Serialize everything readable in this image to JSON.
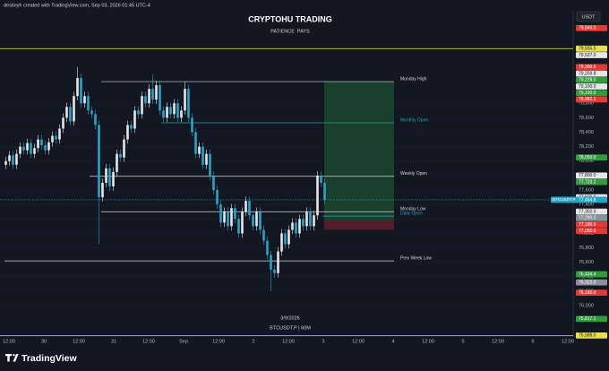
{
  "chart_data": {
    "type": "candlestick",
    "header": "destinyh created with TradingView.com, Sep 03, 2026 01:45 UTC-4",
    "title": "CRYPTOHU TRADING",
    "subtitle": "PATIENCE  PAYS",
    "watermark_date": "3/9/2026",
    "watermark_symbol": "BTCUSDT.P | 60M",
    "currency": "USDT",
    "brand": "TradingView",
    "up_color": "#e6e6e6",
    "down_color": "#2aa3c9",
    "ylim": [
      75580,
      80080
    ],
    "yticks": [
      {
        "value": 76000,
        "label": "76,000"
      },
      {
        "value": 76200,
        "label": "76,200"
      },
      {
        "value": 76400,
        "label": "76,400"
      },
      {
        "value": 76600,
        "label": "76,600"
      },
      {
        "value": 76800,
        "label": "76,800"
      },
      {
        "value": 77000,
        "label": "77,000"
      },
      {
        "value": 77200,
        "label": "77,200"
      },
      {
        "value": 77400,
        "label": "77,400"
      },
      {
        "value": 77600,
        "label": "77,600"
      },
      {
        "value": 77800,
        "label": "77,800"
      },
      {
        "value": 78000,
        "label": "78,000"
      },
      {
        "value": 78200,
        "label": "78,200"
      },
      {
        "value": 78400,
        "label": "78,400"
      },
      {
        "value": 78600,
        "label": "78,600"
      },
      {
        "value": 78800,
        "label": "78,800"
      }
    ],
    "xtick_labels": [
      "12:00",
      "30",
      "12:00",
      "31",
      "12:00",
      "Sep",
      "12:00",
      "2",
      "12:00",
      "3",
      "12:00",
      "4",
      "12:00",
      "5",
      "12:00",
      "6",
      "12:00"
    ],
    "ohlc": [
      [
        77950,
        78060,
        77890,
        78000
      ],
      [
        78000,
        78140,
        77940,
        78080
      ],
      [
        78080,
        78140,
        77890,
        77950
      ],
      [
        77950,
        78160,
        77890,
        78100
      ],
      [
        78100,
        78260,
        78040,
        78200
      ],
      [
        78200,
        78260,
        78090,
        78150
      ],
      [
        78150,
        78310,
        78090,
        78250
      ],
      [
        78250,
        78310,
        78040,
        78100
      ],
      [
        78100,
        78240,
        78040,
        78180
      ],
      [
        78180,
        78360,
        78120,
        78300
      ],
      [
        78300,
        78360,
        78160,
        78220
      ],
      [
        78220,
        78280,
        78090,
        78150
      ],
      [
        78150,
        78320,
        78090,
        78260
      ],
      [
        78260,
        78410,
        78200,
        78350
      ],
      [
        78350,
        78410,
        78240,
        78300
      ],
      [
        78300,
        78510,
        78240,
        78450
      ],
      [
        78450,
        78660,
        78390,
        78600
      ],
      [
        78600,
        78810,
        78540,
        78750
      ],
      [
        78750,
        78810,
        78490,
        78550
      ],
      [
        78550,
        78960,
        78490,
        78900
      ],
      [
        78900,
        79300,
        78840,
        79150
      ],
      [
        79150,
        79210,
        78740,
        78800
      ],
      [
        78800,
        78960,
        78740,
        78900
      ],
      [
        78900,
        78960,
        78640,
        78700
      ],
      [
        78700,
        78760,
        78590,
        78650
      ],
      [
        78650,
        78710,
        78440,
        78500
      ],
      [
        78500,
        78560,
        76850,
        77500
      ],
      [
        77500,
        77760,
        77440,
        77700
      ],
      [
        77700,
        77960,
        77640,
        77900
      ],
      [
        77900,
        77960,
        77590,
        77650
      ],
      [
        77650,
        77910,
        77590,
        77850
      ],
      [
        77850,
        78160,
        77790,
        78100
      ],
      [
        78100,
        78160,
        77990,
        78050
      ],
      [
        78050,
        78360,
        77990,
        78300
      ],
      [
        78300,
        78560,
        78240,
        78500
      ],
      [
        78500,
        78560,
        78390,
        78450
      ],
      [
        78450,
        78760,
        78390,
        78700
      ],
      [
        78700,
        78760,
        78590,
        78650
      ],
      [
        78650,
        78960,
        78590,
        78900
      ],
      [
        78900,
        78960,
        78740,
        78800
      ],
      [
        78800,
        79060,
        78740,
        79000
      ],
      [
        79000,
        79200,
        78790,
        78850
      ],
      [
        78850,
        79110,
        78790,
        79050
      ],
      [
        79050,
        79110,
        78640,
        78700
      ],
      [
        78700,
        78760,
        78540,
        78600
      ],
      [
        78600,
        78810,
        78540,
        78750
      ],
      [
        78750,
        78810,
        78590,
        78650
      ],
      [
        78650,
        78860,
        78590,
        78800
      ],
      [
        78800,
        78860,
        78540,
        78600
      ],
      [
        78600,
        78760,
        78540,
        78700
      ],
      [
        78700,
        79100,
        78640,
        79000
      ],
      [
        79000,
        79060,
        78540,
        78600
      ],
      [
        78600,
        78660,
        78340,
        78400
      ],
      [
        78400,
        78460,
        78040,
        78100
      ],
      [
        78100,
        78260,
        78040,
        78200
      ],
      [
        78200,
        78260,
        77890,
        77950
      ],
      [
        77950,
        78160,
        77890,
        78100
      ],
      [
        78100,
        78160,
        77740,
        77800
      ],
      [
        77800,
        77860,
        77540,
        77600
      ],
      [
        77600,
        77660,
        77340,
        77400
      ],
      [
        77400,
        77460,
        77090,
        77150
      ],
      [
        77150,
        77360,
        77090,
        77300
      ],
      [
        77300,
        77360,
        77040,
        77100
      ],
      [
        77100,
        77410,
        77040,
        77350
      ],
      [
        77350,
        77410,
        77140,
        77200
      ],
      [
        77200,
        77260,
        76940,
        77000
      ],
      [
        77000,
        77360,
        76940,
        77300
      ],
      [
        77300,
        77510,
        77240,
        77450
      ],
      [
        77450,
        77510,
        77190,
        77250
      ],
      [
        77250,
        77310,
        77040,
        77100
      ],
      [
        77100,
        77360,
        77040,
        77300
      ],
      [
        77300,
        77360,
        76990,
        77050
      ],
      [
        77050,
        77110,
        76840,
        76900
      ],
      [
        76900,
        76960,
        76640,
        76700
      ],
      [
        76700,
        76760,
        76200,
        76500
      ],
      [
        76500,
        76560,
        76390,
        76450
      ],
      [
        76450,
        76810,
        76390,
        76750
      ],
      [
        76750,
        77060,
        76690,
        77000
      ],
      [
        77000,
        77060,
        76790,
        76850
      ],
      [
        76850,
        77110,
        76790,
        77050
      ],
      [
        77050,
        77210,
        76990,
        77150
      ],
      [
        77150,
        77210,
        76940,
        77000
      ],
      [
        77000,
        77260,
        76940,
        77200
      ],
      [
        77200,
        77260,
        77040,
        77100
      ],
      [
        77100,
        77360,
        77040,
        77300
      ],
      [
        77300,
        77360,
        77040,
        77100
      ],
      [
        77100,
        77310,
        77040,
        77250
      ],
      [
        77250,
        77860,
        77190,
        77800
      ],
      [
        77800,
        77860,
        77640,
        77700
      ],
      [
        77700,
        77760,
        77400,
        77465
      ]
    ],
    "levels": [
      {
        "label": "Monday High",
        "value": 79100,
        "color": "#d1d4dc"
      },
      {
        "label": "Monthly Open",
        "value": 78530,
        "color": "#26a69a"
      },
      {
        "label": "Weekly Open",
        "value": 77790,
        "color": "#d1d4dc"
      },
      {
        "label": "Monday Low",
        "value": 77300,
        "color": "#d1d4dc"
      },
      {
        "label": "Daily Open",
        "value": 77240,
        "color": "#2aa3c9"
      },
      {
        "label": "Prev Week Low",
        "value": 76620,
        "color": "#d1d4dc"
      }
    ],
    "hlines": [
      {
        "value": 79555.5,
        "color": "#d8cc3c"
      },
      {
        "value": 75588,
        "color": "#d8cc3c"
      }
    ],
    "position": {
      "target": 79100,
      "entry": 77180,
      "stop": 77050
    },
    "last_price": {
      "symbol": "BTCUSDT.P",
      "value": 77464.8,
      "label": "77,464.8",
      "color": "#22a7c4"
    },
    "price_tags": [
      {
        "value": 79840,
        "label": "79,840.0",
        "color": "#e53935"
      },
      {
        "value": 79555.5,
        "label": "79,555.5",
        "color": "#e8e04a"
      },
      {
        "value": 79537,
        "label": "79,537.0",
        "color": "#e6e6e6"
      },
      {
        "value": 79300,
        "label": "79,300.0",
        "color": "#e53935"
      },
      {
        "value": 79259.8,
        "label": "79,259.8",
        "color": "#e6e6e6"
      },
      {
        "value": 79228,
        "label": "79,228.0",
        "color": "#2e9e3a"
      },
      {
        "value": 79100,
        "label": "79,100.0",
        "color": "#e6e6e6"
      },
      {
        "value": 79100,
        "label": "79,100.0",
        "color": "#2e9e3a"
      },
      {
        "value": 78982.1,
        "label": "78,982.1",
        "color": "#e53935"
      },
      {
        "value": 78050,
        "label": "78,050.0",
        "color": "#2e9e3a"
      },
      {
        "value": 77800,
        "label": "77,800.0",
        "color": "#e6e6e6"
      },
      {
        "value": 77723.2,
        "label": "77,723.2",
        "color": "#2e9e3a"
      },
      {
        "value": 77500,
        "label": "77,500.0",
        "color": "#e6e6e6"
      },
      {
        "value": 77302,
        "label": "77,302.0",
        "color": "#e6e6e6"
      },
      {
        "value": 77290,
        "label": "77,290.0",
        "color": "#8a8f99"
      },
      {
        "value": 77180,
        "label": "77,180.0",
        "color": "#e53935"
      },
      {
        "value": 77050,
        "label": "77,050.0",
        "color": "#e53935"
      },
      {
        "value": 76434.4,
        "label": "76,434.4",
        "color": "#2e9e3a"
      },
      {
        "value": 76322,
        "label": "76,322.0",
        "color": "#8a8f99"
      },
      {
        "value": 76180,
        "label": "76,180.0",
        "color": "#e53935"
      },
      {
        "value": 75817.1,
        "label": "75,817.1",
        "color": "#2e9e3a"
      },
      {
        "value": 75588,
        "label": "75,588.0",
        "color": "#e8e04a"
      }
    ]
  }
}
